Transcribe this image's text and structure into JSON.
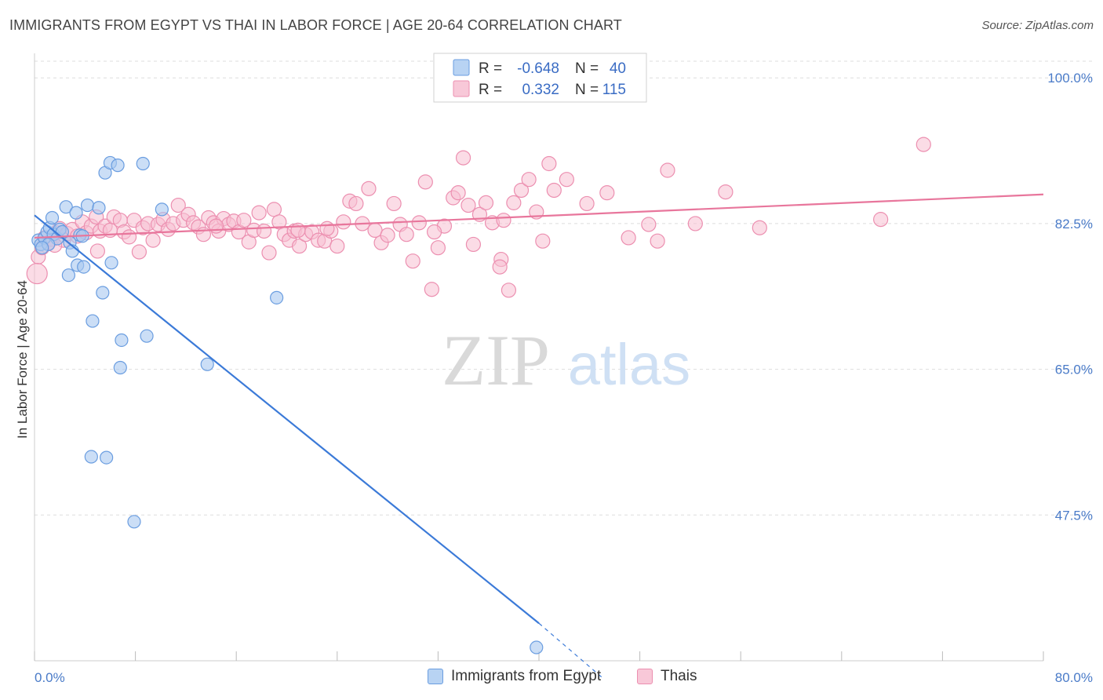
{
  "title": "IMMIGRANTS FROM EGYPT VS THAI IN LABOR FORCE | AGE 20-64 CORRELATION CHART",
  "source": "Source: ZipAtlas.com",
  "watermark": {
    "zip": "ZIP",
    "atlas": "atlas"
  },
  "colors": {
    "blue_fill": "#a8c8f0",
    "blue_stroke": "#6a9de0",
    "blue_line": "#3b7ad8",
    "pink_fill": "#f7bfd2",
    "pink_stroke": "#ec8fb0",
    "pink_line": "#e8769c",
    "tick_text": "#4a7bc8",
    "grid": "#dddddd"
  },
  "legend": {
    "r_label": "R =",
    "n_label": "N =",
    "series1": {
      "r": "-0.648",
      "n": "40"
    },
    "series2": {
      "r": "0.332",
      "n": "115"
    }
  },
  "bottom_legend": {
    "series1": "Immigrants from Egypt",
    "series2": "Thais"
  },
  "chart_data": {
    "type": "scatter",
    "title": "IMMIGRANTS FROM EGYPT VS THAI IN LABOR FORCE | AGE 20-64 CORRELATION CHART",
    "xlabel": "",
    "ylabel": "In Labor Force | Age 20-64",
    "xlim": [
      0,
      80
    ],
    "ylim": [
      30,
      102
    ],
    "x_tick_labels": [
      "0.0%",
      "80.0%"
    ],
    "y_ticks": [
      100,
      82.5,
      65,
      47.5
    ],
    "y_tick_labels": [
      "100.0%",
      "82.5%",
      "65.0%",
      "47.5%"
    ],
    "grid": true,
    "legend_position": "top-center",
    "series": [
      {
        "name": "Immigrants from Egypt",
        "r": -0.648,
        "n": 40,
        "trend": {
          "x0": 0,
          "y0": 83.5,
          "x1": 40,
          "y1": 34.5,
          "dashed_to_x": 45,
          "dashed_to_y": 28.0
        },
        "points": [
          [
            0.3,
            80.5
          ],
          [
            0.5,
            80
          ],
          [
            0.8,
            80.8
          ],
          [
            1.0,
            81.5
          ],
          [
            1.2,
            82
          ],
          [
            1.5,
            81.2
          ],
          [
            1.8,
            80.7
          ],
          [
            2.0,
            81.8
          ],
          [
            2.5,
            84.5
          ],
          [
            2.8,
            80.2
          ],
          [
            1.4,
            83.2
          ],
          [
            3.3,
            83.8
          ],
          [
            3.6,
            81.1
          ],
          [
            4.2,
            84.7
          ],
          [
            5.1,
            84.4
          ],
          [
            3.0,
            79.2
          ],
          [
            2.7,
            76.3
          ],
          [
            3.4,
            77.5
          ],
          [
            3.9,
            77.3
          ],
          [
            6.1,
            77.8
          ],
          [
            5.4,
            74.2
          ],
          [
            4.6,
            70.8
          ],
          [
            6.9,
            68.5
          ],
          [
            8.9,
            69
          ],
          [
            8.6,
            89.7
          ],
          [
            5.6,
            88.6
          ],
          [
            6.0,
            89.8
          ],
          [
            6.6,
            89.5
          ],
          [
            10.1,
            84.2
          ],
          [
            6.8,
            65.2
          ],
          [
            13.7,
            65.6
          ],
          [
            4.5,
            54.5
          ],
          [
            5.7,
            54.4
          ],
          [
            7.9,
            46.7
          ],
          [
            19.2,
            73.6
          ],
          [
            39.8,
            31.6
          ],
          [
            2.2,
            81.5
          ],
          [
            1.1,
            80.0
          ],
          [
            0.6,
            79.6
          ],
          [
            3.8,
            81.0
          ]
        ]
      },
      {
        "name": "Thais",
        "r": 0.332,
        "n": 115,
        "trend": {
          "x0": 0,
          "y0": 80.8,
          "x1": 80,
          "y1": 86.0
        },
        "points": [
          [
            0.3,
            78.5
          ],
          [
            0.6,
            79.6
          ],
          [
            0.8,
            80.8
          ],
          [
            1.1,
            80.2
          ],
          [
            1.4,
            80.6
          ],
          [
            1.7,
            81.4
          ],
          [
            2.0,
            81.9
          ],
          [
            2.3,
            80.5
          ],
          [
            2.6,
            81.3
          ],
          [
            3.0,
            81.8
          ],
          [
            3.4,
            81.0
          ],
          [
            3.8,
            82.7
          ],
          [
            4.1,
            81.4
          ],
          [
            4.5,
            82.2
          ],
          [
            4.9,
            83.3
          ],
          [
            5.2,
            81.6
          ],
          [
            5.6,
            82.2
          ],
          [
            6.0,
            81.7
          ],
          [
            6.3,
            83.3
          ],
          [
            6.8,
            82.9
          ],
          [
            7.1,
            81.5
          ],
          [
            7.5,
            80.9
          ],
          [
            7.9,
            82.9
          ],
          [
            8.3,
            79.1
          ],
          [
            8.6,
            82.0
          ],
          [
            9.0,
            82.5
          ],
          [
            9.4,
            80.5
          ],
          [
            9.8,
            82.4
          ],
          [
            10.2,
            83.0
          ],
          [
            10.6,
            81.8
          ],
          [
            11.0,
            82.5
          ],
          [
            11.4,
            84.7
          ],
          [
            11.8,
            82.9
          ],
          [
            12.2,
            83.6
          ],
          [
            12.6,
            82.6
          ],
          [
            13.0,
            82.1
          ],
          [
            13.4,
            81.2
          ],
          [
            13.8,
            83.2
          ],
          [
            14.2,
            82.6
          ],
          [
            14.6,
            81.6
          ],
          [
            15.0,
            83.1
          ],
          [
            15.4,
            82.4
          ],
          [
            15.8,
            82.8
          ],
          [
            16.2,
            81.5
          ],
          [
            16.6,
            82.9
          ],
          [
            17.0,
            80.3
          ],
          [
            17.4,
            81.7
          ],
          [
            17.8,
            83.8
          ],
          [
            18.2,
            81.6
          ],
          [
            18.6,
            79.0
          ],
          [
            19.0,
            84.2
          ],
          [
            19.4,
            82.7
          ],
          [
            19.8,
            81.2
          ],
          [
            20.2,
            80.5
          ],
          [
            20.6,
            81.6
          ],
          [
            21.0,
            79.8
          ],
          [
            21.5,
            81.2
          ],
          [
            22.0,
            81.5
          ],
          [
            22.5,
            80.5
          ],
          [
            23.0,
            80.4
          ],
          [
            23.5,
            81.6
          ],
          [
            24.0,
            79.8
          ],
          [
            24.5,
            82.7
          ],
          [
            25.0,
            85.2
          ],
          [
            25.5,
            84.9
          ],
          [
            26.0,
            82.5
          ],
          [
            26.5,
            86.7
          ],
          [
            27.0,
            81.7
          ],
          [
            27.5,
            80.2
          ],
          [
            28.0,
            81.1
          ],
          [
            28.5,
            84.9
          ],
          [
            29.0,
            82.4
          ],
          [
            29.5,
            81.2
          ],
          [
            30.0,
            78.0
          ],
          [
            30.5,
            82.6
          ],
          [
            31.0,
            87.5
          ],
          [
            31.5,
            74.6
          ],
          [
            32.0,
            79.6
          ],
          [
            32.5,
            82.2
          ],
          [
            33.2,
            85.6
          ],
          [
            33.6,
            86.2
          ],
          [
            34.0,
            90.4
          ],
          [
            34.4,
            84.7
          ],
          [
            34.8,
            80.0
          ],
          [
            35.3,
            83.6
          ],
          [
            35.8,
            85.0
          ],
          [
            36.3,
            82.6
          ],
          [
            37.0,
            78.2
          ],
          [
            37.6,
            74.5
          ],
          [
            38.0,
            85.0
          ],
          [
            38.6,
            86.5
          ],
          [
            39.2,
            87.8
          ],
          [
            39.8,
            83.9
          ],
          [
            40.3,
            80.4
          ],
          [
            40.8,
            89.7
          ],
          [
            41.2,
            86.5
          ],
          [
            42.2,
            87.8
          ],
          [
            43.8,
            84.9
          ],
          [
            45.4,
            86.2
          ],
          [
            47.1,
            80.8
          ],
          [
            48.7,
            82.4
          ],
          [
            49.4,
            80.4
          ],
          [
            50.2,
            88.9
          ],
          [
            52.4,
            82.5
          ],
          [
            54.8,
            86.3
          ],
          [
            57.5,
            82.0
          ],
          [
            67.1,
            83.0
          ],
          [
            70.5,
            92.0
          ],
          [
            1.6,
            79.9
          ],
          [
            0.2,
            76.5
          ],
          [
            5.0,
            79.2
          ],
          [
            36.9,
            77.3
          ],
          [
            37.2,
            82.9
          ],
          [
            14.4,
            82.2
          ],
          [
            23.2,
            81.9
          ],
          [
            20.9,
            81.7
          ],
          [
            31.7,
            81.5
          ]
        ]
      }
    ]
  }
}
